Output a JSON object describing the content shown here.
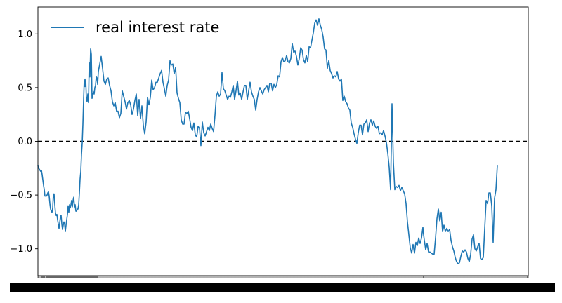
{
  "chart_data": {
    "type": "line",
    "title": "",
    "xlabel": "",
    "ylabel": "",
    "ylim": [
      -1.25,
      1.25
    ],
    "yticks": [
      -1.0,
      -0.5,
      0.0,
      0.5,
      1.0
    ],
    "ytick_labels": [
      "−1.0",
      "−0.5",
      "0.0",
      "0.5",
      "1.0"
    ],
    "xtick_labels_legible": false,
    "grid": false,
    "legend": {
      "placement": "top-left",
      "frame": false
    },
    "reference_line": {
      "y": 0.0,
      "style": "dashed",
      "color": "#000000"
    },
    "series": [
      {
        "name": "real interest rate",
        "color": "#1f77b4",
        "index": [
          0,
          1,
          2,
          4,
          5,
          6,
          7,
          8,
          9,
          10,
          12,
          13,
          14,
          15,
          16,
          17,
          18,
          19,
          20,
          21,
          22,
          23,
          24,
          25,
          26,
          27,
          28,
          29,
          30,
          31,
          32,
          33,
          34,
          35,
          36,
          37,
          38,
          39,
          40,
          41,
          42,
          43,
          44,
          45,
          46,
          47,
          48,
          49,
          50,
          51,
          52,
          53,
          54,
          55,
          56,
          57,
          58,
          59,
          60,
          61,
          62,
          63,
          64,
          65,
          66,
          67,
          68,
          69,
          70,
          71,
          72,
          73,
          74,
          75,
          76,
          77,
          78,
          79,
          80,
          81,
          82,
          83,
          84,
          85,
          86,
          88,
          90,
          92,
          94,
          96,
          98,
          100,
          102,
          104,
          106,
          108,
          110,
          112,
          114,
          116,
          118,
          120,
          122,
          124,
          126,
          128,
          130,
          132,
          134,
          136,
          138,
          140,
          142,
          144,
          146,
          148,
          150,
          152,
          154,
          156,
          158,
          160,
          162,
          164,
          166,
          168,
          170,
          172,
          174,
          176,
          178,
          180,
          182,
          184,
          186,
          188,
          190,
          192,
          194,
          196,
          198,
          200,
          202,
          204,
          206,
          208,
          210,
          212,
          214,
          216,
          218,
          220,
          222,
          224,
          226,
          228,
          230,
          232,
          234,
          236,
          238,
          240,
          242,
          244,
          246,
          248,
          250,
          252,
          254,
          256,
          258,
          260,
          262,
          264,
          266,
          268,
          270,
          272,
          274,
          276,
          278,
          280,
          282,
          284,
          286,
          288,
          290,
          292,
          294,
          296,
          298,
          300,
          302,
          304,
          306,
          308,
          310,
          312,
          314,
          316,
          318,
          320,
          322,
          324,
          326,
          328,
          330,
          332,
          334,
          336,
          338,
          340,
          342,
          344,
          346,
          348,
          350,
          352,
          354,
          356,
          358,
          360,
          362,
          364,
          366,
          368,
          370,
          372,
          374,
          376,
          378,
          380,
          382,
          384,
          386,
          388,
          390,
          392,
          394,
          396,
          398,
          400,
          402,
          404,
          406,
          408,
          410,
          412,
          414,
          416,
          418,
          420,
          422,
          424,
          426,
          428,
          430,
          432,
          434,
          436,
          438,
          440,
          442,
          444,
          446,
          448,
          450,
          452,
          454,
          456,
          458,
          460,
          462,
          464,
          466,
          468,
          470,
          472,
          474,
          476,
          478,
          480,
          482,
          484,
          486,
          488,
          490,
          492,
          494,
          496,
          498,
          500,
          502,
          504,
          506,
          508,
          510,
          512,
          514,
          516,
          518,
          520,
          522,
          524,
          526,
          528,
          530,
          532,
          534,
          536,
          538,
          540,
          542,
          544,
          546,
          548,
          549,
          550,
          552,
          554,
          556,
          558,
          560,
          562,
          564,
          566,
          568,
          570,
          572,
          574,
          576,
          578,
          580,
          582,
          584,
          586,
          588,
          590,
          592,
          594,
          596,
          598,
          600,
          602,
          604,
          606,
          608,
          610,
          612,
          614,
          616,
          618,
          620,
          622,
          624,
          626,
          628,
          630,
          632,
          634,
          636,
          638,
          640,
          642,
          644,
          646,
          648,
          650,
          652,
          654,
          656,
          658,
          660,
          662,
          664,
          666,
          668,
          670,
          672,
          674,
          676,
          678,
          680,
          682,
          684,
          686,
          688,
          690,
          692,
          694,
          696,
          697,
          698
        ],
        "values": [
          -0.22,
          -0.25,
          -0.26,
          -0.28,
          -0.27,
          -0.31,
          -0.36,
          -0.41,
          -0.45,
          -0.51,
          -0.51,
          -0.5,
          -0.48,
          -0.47,
          -0.51,
          -0.58,
          -0.63,
          -0.65,
          -0.66,
          -0.62,
          -0.49,
          -0.49,
          -0.59,
          -0.67,
          -0.69,
          -0.68,
          -0.73,
          -0.77,
          -0.81,
          -0.76,
          -0.7,
          -0.69,
          -0.77,
          -0.82,
          -0.78,
          -0.75,
          -0.77,
          -0.84,
          -0.78,
          -0.73,
          -0.68,
          -0.6,
          -0.66,
          -0.59,
          -0.62,
          -0.59,
          -0.55,
          -0.61,
          -0.55,
          -0.52,
          -0.61,
          -0.59,
          -0.65,
          -0.65,
          -0.63,
          -0.63,
          -0.59,
          -0.48,
          -0.35,
          -0.28,
          -0.12,
          -0.02,
          0.16,
          0.39,
          0.58,
          0.51,
          0.58,
          0.39,
          0.37,
          0.44,
          0.36,
          0.73,
          0.6,
          0.86,
          0.81,
          0.4,
          0.43,
          0.46,
          0.44,
          0.5,
          0.52,
          0.6,
          0.59,
          0.53,
          0.65,
          0.72,
          0.79,
          0.68,
          0.56,
          0.53,
          0.58,
          0.59,
          0.52,
          0.47,
          0.37,
          0.33,
          0.36,
          0.28,
          0.28,
          0.22,
          0.26,
          0.47,
          0.42,
          0.37,
          0.3,
          0.36,
          0.38,
          0.34,
          0.25,
          0.3,
          0.38,
          0.44,
          0.24,
          0.39,
          0.21,
          0.33,
          0.15,
          0.07,
          0.18,
          0.41,
          0.34,
          0.41,
          0.57,
          0.48,
          0.5,
          0.55,
          0.55,
          0.59,
          0.63,
          0.66,
          0.55,
          0.49,
          0.42,
          0.52,
          0.57,
          0.75,
          0.71,
          0.72,
          0.63,
          0.69,
          0.45,
          0.4,
          0.36,
          0.2,
          0.16,
          0.16,
          0.27,
          0.26,
          0.28,
          0.21,
          0.13,
          0.1,
          0.17,
          0.06,
          0.04,
          0.14,
          0.12,
          -0.04,
          0.18,
          0.08,
          0.05,
          0.09,
          0.13,
          0.1,
          0.16,
          0.12,
          0.09,
          0.24,
          0.42,
          0.46,
          0.42,
          0.44,
          0.64,
          0.49,
          0.47,
          0.43,
          0.39,
          0.42,
          0.41,
          0.46,
          0.52,
          0.39,
          0.47,
          0.56,
          0.43,
          0.45,
          0.39,
          0.46,
          0.52,
          0.52,
          0.39,
          0.47,
          0.55,
          0.46,
          0.42,
          0.39,
          0.29,
          0.39,
          0.46,
          0.5,
          0.47,
          0.44,
          0.48,
          0.5,
          0.52,
          0.46,
          0.54,
          0.54,
          0.47,
          0.53,
          0.5,
          0.53,
          0.61,
          0.6,
          0.74,
          0.78,
          0.74,
          0.75,
          0.8,
          0.74,
          0.73,
          0.77,
          0.91,
          0.83,
          0.84,
          0.79,
          0.71,
          0.77,
          0.87,
          0.85,
          0.76,
          0.73,
          0.8,
          0.74,
          0.88,
          0.87,
          0.94,
          1.01,
          1.1,
          1.13,
          1.08,
          1.14,
          1.08,
          1.04,
          0.97,
          0.86,
          0.85,
          0.68,
          0.75,
          0.66,
          0.63,
          0.59,
          0.61,
          0.6,
          0.65,
          0.58,
          0.56,
          0.58,
          0.38,
          0.42,
          0.37,
          0.35,
          0.31,
          0.29,
          0.17,
          0.13,
          0.07,
          0.02,
          -0.02,
          0.08,
          0.15,
          0.15,
          0.06,
          0.16,
          0.17,
          0.2,
          0.09,
          0.17,
          0.2,
          0.15,
          0.19,
          0.14,
          0.12,
          0.14,
          0.07,
          0.08,
          0.06,
          0.1,
          0.05,
          -0.01,
          -0.11,
          -0.24,
          -0.45,
          0.35,
          -0.2,
          -0.45,
          -0.42,
          -0.43,
          -0.41,
          -0.46,
          -0.43,
          -0.46,
          -0.49,
          -0.58,
          -0.75,
          -0.87,
          -0.99,
          -1.04,
          -0.96,
          -1.04,
          -0.94,
          -0.97,
          -0.9,
          -0.95,
          -0.9,
          -0.8,
          -0.87,
          -0.92,
          -1.01,
          -0.95,
          -1.03,
          -1.03,
          -1.04,
          -1.05,
          -1.05,
          -0.9,
          -0.72,
          -0.63,
          -0.74,
          -0.66,
          -0.84,
          -0.78,
          -0.84,
          -0.81,
          -0.84,
          -0.82,
          -0.92,
          -0.98,
          -1.02,
          -1.08,
          -1.12,
          -1.14,
          -1.13,
          -1.07,
          -1.02,
          -1.03,
          -1.01,
          -1.03,
          -1.09,
          -1.12,
          -1.05,
          -0.91,
          -0.87,
          -1.0,
          -1.02,
          -0.98,
          -0.95,
          -1.09,
          -1.1,
          -1.08,
          -0.81,
          -0.55,
          -0.58,
          -0.48,
          -0.48,
          -0.6,
          -0.94,
          -0.53,
          -0.45,
          -0.22
        ]
      }
    ]
  }
}
